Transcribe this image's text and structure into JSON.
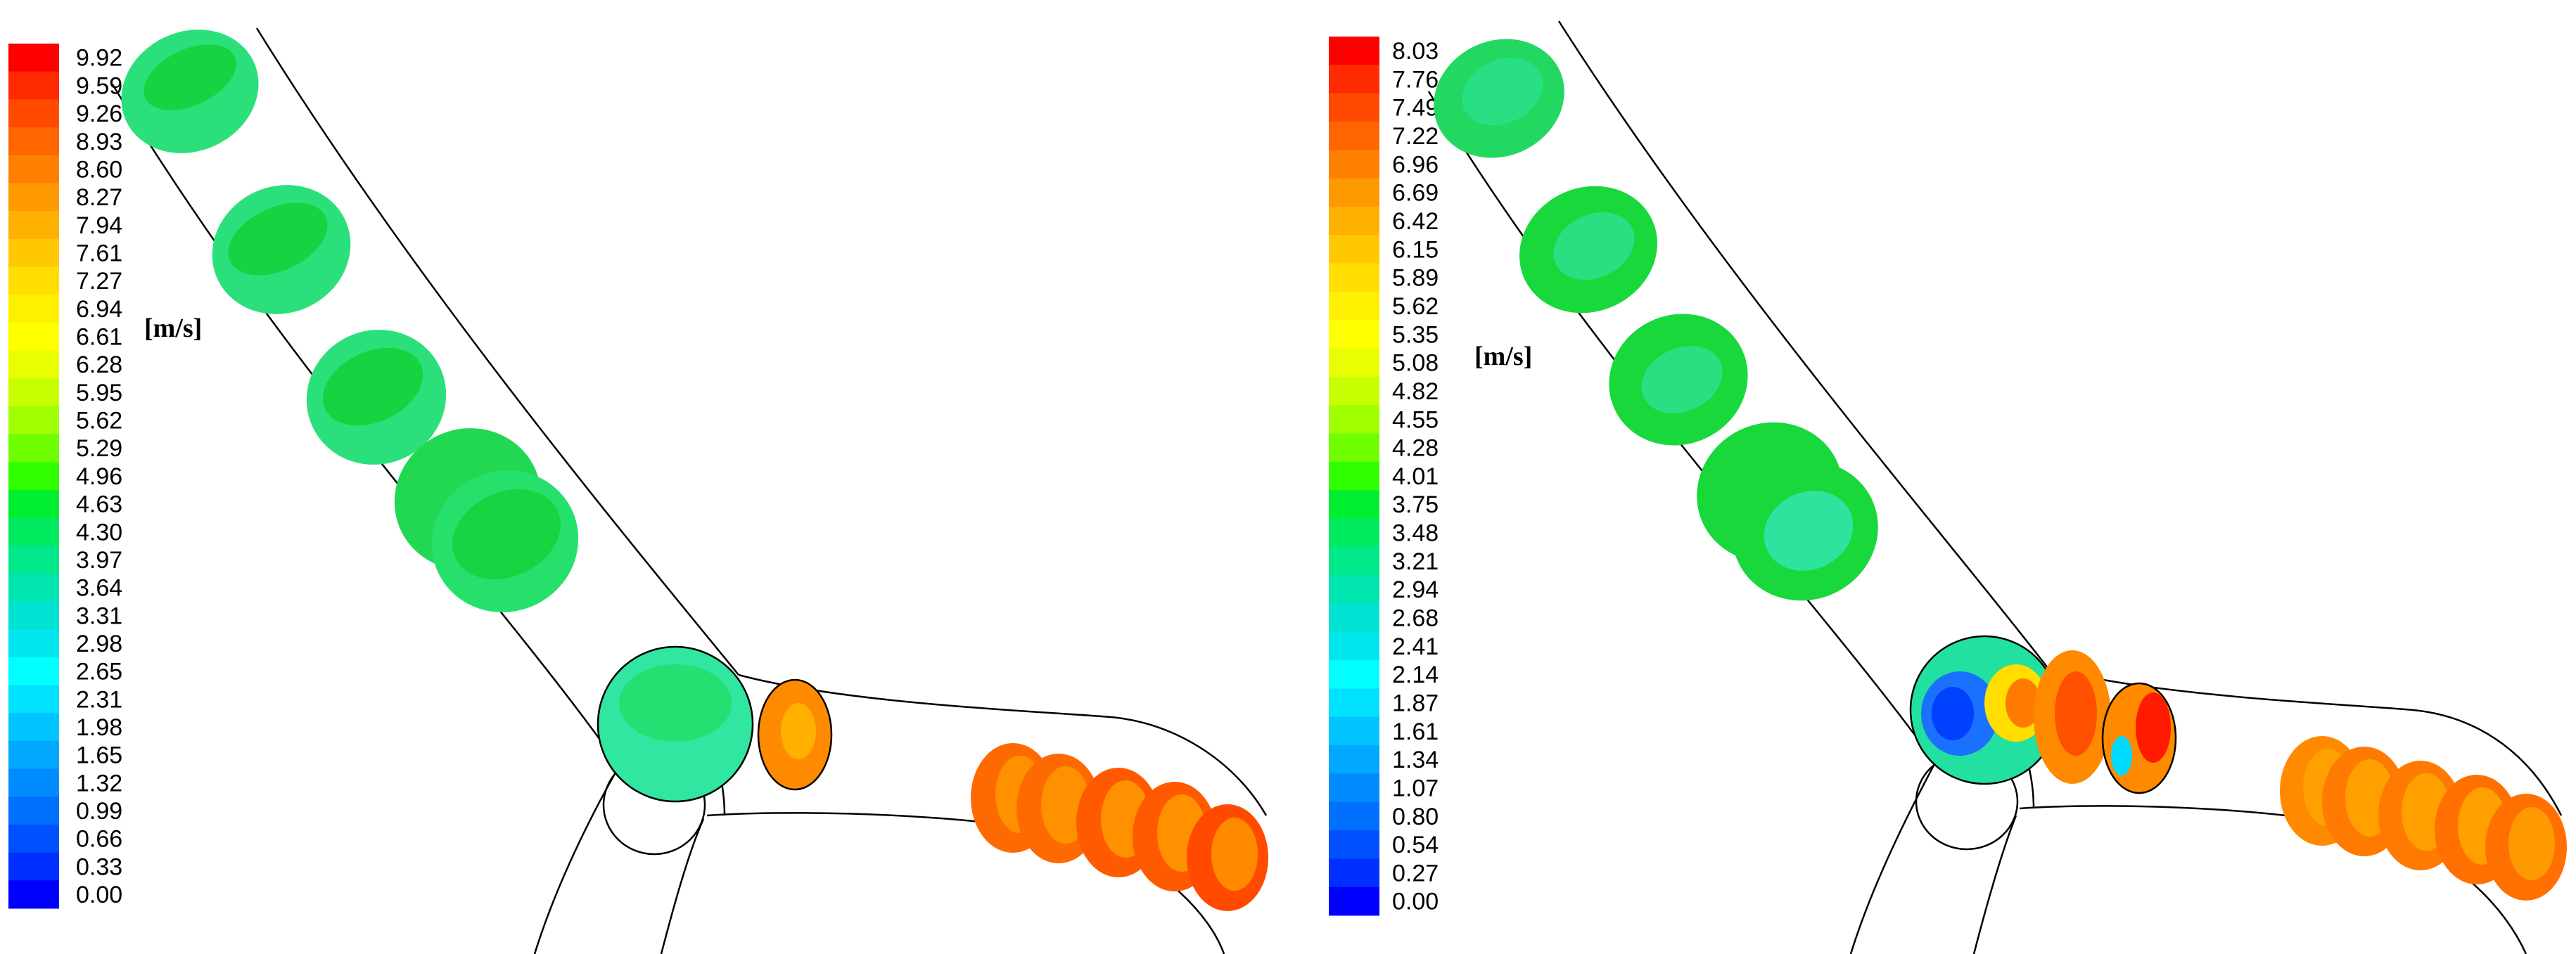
{
  "panels": [
    {
      "id": "left",
      "unit": "[m/s]",
      "ticks": [
        "9.92",
        "9.59",
        "9.26",
        "8.93",
        "8.60",
        "8.27",
        "7.94",
        "7.61",
        "7.27",
        "6.94",
        "6.61",
        "6.28",
        "5.95",
        "5.62",
        "5.29",
        "4.96",
        "4.63",
        "4.30",
        "3.97",
        "3.64",
        "3.31",
        "2.98",
        "2.65",
        "2.31",
        "1.98",
        "1.65",
        "1.32",
        "0.99",
        "0.66",
        "0.33",
        "0.00"
      ]
    },
    {
      "id": "right",
      "unit": "[m/s]",
      "ticks": [
        "8.03",
        "7.76",
        "7.49",
        "7.22",
        "6.96",
        "6.69",
        "6.42",
        "6.15",
        "5.89",
        "5.62",
        "5.35",
        "5.08",
        "4.82",
        "4.55",
        "4.28",
        "4.01",
        "3.75",
        "3.48",
        "3.21",
        "2.94",
        "2.68",
        "2.41",
        "2.14",
        "1.87",
        "1.61",
        "1.34",
        "1.07",
        "0.80",
        "0.54",
        "0.27",
        "0.00"
      ]
    }
  ],
  "colormap": [
    "#ff0000",
    "#ff2a00",
    "#ff4a00",
    "#ff6600",
    "#ff8000",
    "#ff9900",
    "#ffb000",
    "#ffc800",
    "#ffde00",
    "#fff000",
    "#ffff00",
    "#e8ff00",
    "#c8ff00",
    "#a0ff00",
    "#70ff00",
    "#30ff00",
    "#00ee30",
    "#00ea60",
    "#00e88a",
    "#00e4b0",
    "#00e2d2",
    "#00e6ee",
    "#00ffff",
    "#00e0ff",
    "#00c4ff",
    "#00a8ff",
    "#008cff",
    "#0070ff",
    "#0050ff",
    "#0030ff",
    "#0000ff"
  ],
  "colors": {
    "green_low": "#22dd55",
    "green_mid": "#11cc44",
    "teal": "#22e0b0",
    "orange": "#ff8a00",
    "orange_dark": "#ff6a00",
    "red": "#ff1a00",
    "blue": "#1a70ff",
    "cyan": "#00dcff",
    "outline": "#000000"
  }
}
